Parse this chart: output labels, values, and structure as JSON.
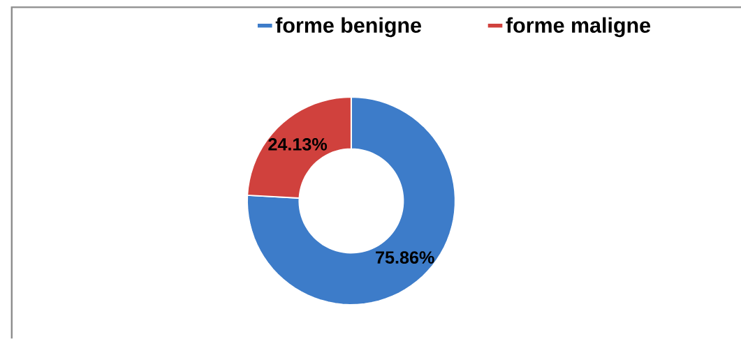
{
  "chart_data": {
    "type": "donut",
    "categories": [
      "forme benigne",
      "forme maligne"
    ],
    "values": [
      75.86,
      24.13
    ],
    "colors": [
      "#3d7cc9",
      "#d0413d"
    ],
    "value_labels": [
      "75.86%",
      "24.13%"
    ],
    "legend": "top"
  }
}
